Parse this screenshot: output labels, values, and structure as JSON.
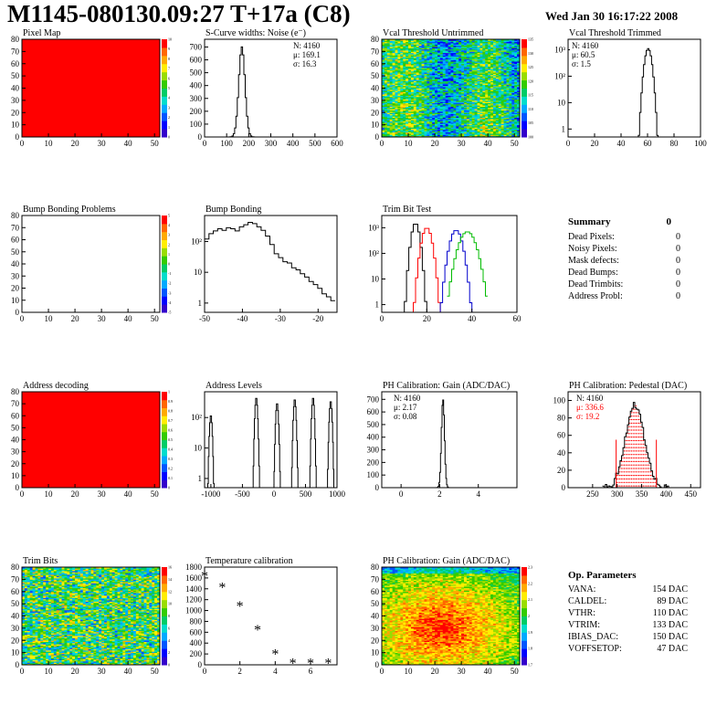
{
  "header": {
    "title": "M1145-080130.09:27 T+17a (C8)",
    "date": "Wed Jan 30 16:17:22 2008"
  },
  "colors": {
    "hot": "#ff0000",
    "line": "#000000",
    "trim_red": "#ff0000",
    "trim_blue": "#0000cc",
    "trim_green": "#00bb00"
  },
  "panels": {
    "pixel_map": {
      "title": "Pixel Map",
      "type": "heatmap",
      "x_ticks": [
        "0",
        "10",
        "20",
        "30",
        "40",
        "50"
      ],
      "y_ticks": [
        "0",
        "10",
        "20",
        "30",
        "40",
        "50",
        "60",
        "70",
        "80"
      ],
      "palette_ticks": [
        "0",
        "1",
        "2",
        "3",
        "4",
        "5",
        "6",
        "7",
        "8",
        "9",
        "10"
      ],
      "fill": "uniform-red"
    },
    "noise": {
      "title": "S-Curve widths: Noise (e⁻)",
      "type": "line",
      "stats": {
        "n": "N: 4160",
        "mu": "μ: 169.1",
        "sigma": "σ: 16.3"
      },
      "x_ticks": [
        "0",
        "100",
        "200",
        "300",
        "400",
        "500",
        "600"
      ],
      "y_ticks": [
        "0",
        "100",
        "200",
        "300",
        "400",
        "500",
        "600",
        "700"
      ],
      "xlim": [
        0,
        600
      ],
      "ylim": [
        0,
        760
      ]
    },
    "vcal_untrimmed": {
      "title": "Vcal Threshold Untrimmed",
      "type": "heatmap",
      "x_ticks": [
        "0",
        "10",
        "20",
        "30",
        "40",
        "50"
      ],
      "y_ticks": [
        "0",
        "10",
        "20",
        "30",
        "40",
        "50",
        "60",
        "70",
        "80"
      ],
      "palette_ticks": [
        "100",
        "105",
        "110",
        "115",
        "120",
        "125",
        "130",
        "135"
      ]
    },
    "vcal_trimmed": {
      "title": "Vcal Threshold Trimmed",
      "type": "line",
      "log_y": true,
      "stats": {
        "n": "N: 4160",
        "mu": "μ: 60.5",
        "sigma": "σ: 1.5"
      },
      "x_ticks": [
        "0",
        "20",
        "40",
        "60",
        "80",
        "100"
      ],
      "y_ticks": [
        "1",
        "10",
        "10²",
        "10³"
      ],
      "xlim": [
        0,
        100
      ]
    },
    "bump_problems": {
      "title": "Bump Bonding Problems",
      "type": "heatmap",
      "x_ticks": [
        "0",
        "10",
        "20",
        "30",
        "40",
        "50"
      ],
      "y_ticks": [
        "0",
        "10",
        "20",
        "30",
        "40",
        "50",
        "60",
        "70",
        "80"
      ],
      "palette_ticks": [
        "-5",
        "-4",
        "-3",
        "-2",
        "-1",
        "0",
        "1",
        "2",
        "3",
        "4",
        "5"
      ],
      "fill": "empty"
    },
    "bump_bonding": {
      "title": "Bump Bonding",
      "type": "line",
      "log_y": true,
      "x_ticks": [
        "-50",
        "-40",
        "-30",
        "-20"
      ],
      "y_ticks": [
        "1",
        "10",
        "10²"
      ],
      "xlim": [
        -50,
        -15
      ]
    },
    "trim_bit": {
      "title": "Trim Bit Test",
      "type": "line",
      "log_y": true,
      "x_ticks": [
        "0",
        "20",
        "40",
        "60"
      ],
      "y_ticks": [
        "1",
        "10",
        "10²",
        "10³"
      ],
      "xlim": [
        0,
        60
      ]
    },
    "summary": {
      "title": "Summary",
      "total": "0",
      "rows": [
        {
          "label": "Dead Pixels:",
          "value": "0"
        },
        {
          "label": "Noisy Pixels:",
          "value": "0"
        },
        {
          "label": "Mask defects:",
          "value": "0"
        },
        {
          "label": "Dead Bumps:",
          "value": "0"
        },
        {
          "label": "Dead Trimbits:",
          "value": "0"
        },
        {
          "label": "Address Probl:",
          "value": "0"
        }
      ]
    },
    "address_decoding": {
      "title": "Address decoding",
      "type": "heatmap",
      "x_ticks": [
        "0",
        "10",
        "20",
        "30",
        "40",
        "50"
      ],
      "y_ticks": [
        "0",
        "10",
        "20",
        "30",
        "40",
        "50",
        "60",
        "70",
        "80"
      ],
      "palette_ticks": [
        "0",
        "0.1",
        "0.2",
        "0.3",
        "0.4",
        "0.5",
        "0.6",
        "0.7",
        "0.8",
        "0.9",
        "1"
      ],
      "fill": "uniform-red"
    },
    "address_levels": {
      "title": "Address Levels",
      "type": "line",
      "log_y": true,
      "x_ticks": [
        "-1000",
        "-500",
        "0",
        "500",
        "1000"
      ],
      "y_ticks": [
        "1",
        "10",
        "10²"
      ],
      "xlim": [
        -1100,
        1000
      ]
    },
    "ph_gain_hist": {
      "title": "PH Calibration: Gain (ADC/DAC)",
      "type": "line",
      "stats": {
        "n": "N: 4160",
        "mu": "μ: 2.17",
        "sigma": "σ: 0.08"
      },
      "x_ticks": [
        "0",
        "2",
        "4"
      ],
      "y_ticks": [
        "0",
        "100",
        "200",
        "300",
        "400",
        "500",
        "600",
        "700"
      ],
      "xlim": [
        -1,
        6
      ],
      "ylim": [
        0,
        760
      ]
    },
    "ph_pedestal": {
      "title": "PH Calibration: Pedestal (DAC)",
      "type": "line",
      "stats": {
        "n": "N: 4160",
        "mu": "μ: 336.6",
        "sigma": "σ: 19.2"
      },
      "x_ticks": [
        "250",
        "300",
        "350",
        "400",
        "450"
      ],
      "y_ticks": [
        "0",
        "20",
        "40",
        "60",
        "80",
        "100"
      ],
      "xlim": [
        200,
        470
      ],
      "ylim": [
        0,
        110
      ]
    },
    "trim_bits": {
      "title": "Trim Bits",
      "type": "heatmap",
      "x_ticks": [
        "0",
        "10",
        "20",
        "30",
        "40",
        "50"
      ],
      "y_ticks": [
        "0",
        "10",
        "20",
        "30",
        "40",
        "50",
        "60",
        "70",
        "80"
      ],
      "palette_ticks": [
        "0",
        "2",
        "4",
        "6",
        "8",
        "10",
        "12",
        "14",
        "16"
      ]
    },
    "temperature": {
      "title": "Temperature calibration",
      "type": "scatter",
      "x_ticks": [
        "0",
        "2",
        "4",
        "6"
      ],
      "y_ticks": [
        "0",
        "200",
        "400",
        "600",
        "800",
        "1000",
        "1200",
        "1400",
        "1600",
        "1800"
      ],
      "xlim": [
        0,
        7.5
      ],
      "ylim": [
        0,
        1800
      ],
      "points": [
        [
          0,
          1650
        ],
        [
          1,
          1440
        ],
        [
          2,
          1090
        ],
        [
          3,
          660
        ],
        [
          4,
          210
        ],
        [
          5,
          40
        ],
        [
          6,
          40
        ],
        [
          7,
          40
        ]
      ]
    },
    "ph_gain_map": {
      "title": "PH Calibration: Gain (ADC/DAC)",
      "type": "heatmap",
      "x_ticks": [
        "0",
        "10",
        "20",
        "30",
        "40",
        "50"
      ],
      "y_ticks": [
        "0",
        "10",
        "20",
        "30",
        "40",
        "50",
        "60",
        "70",
        "80"
      ],
      "palette_ticks": [
        "1.7",
        "1.8",
        "1.9",
        "2",
        "2.1",
        "2.2",
        "2.3"
      ]
    },
    "op_params": {
      "title": "Op. Parameters",
      "rows": [
        {
          "label": "VANA:",
          "value": "154 DAC"
        },
        {
          "label": "CALDEL:",
          "value": "89 DAC"
        },
        {
          "label": "VTHR:",
          "value": "110 DAC"
        },
        {
          "label": "VTRIM:",
          "value": "133 DAC"
        },
        {
          "label": "IBIAS_DAC:",
          "value": "150 DAC"
        },
        {
          "label": "VOFFSETOP:",
          "value": "47 DAC"
        }
      ]
    }
  }
}
